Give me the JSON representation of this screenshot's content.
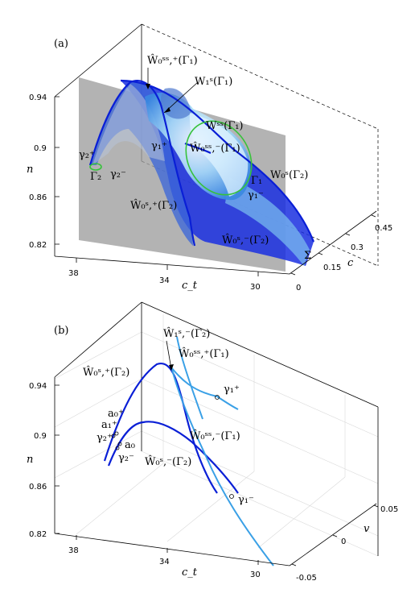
{
  "panel_a": {
    "label": "(a)",
    "y_axis_label": "n",
    "x_axis_label": "c_t",
    "z_axis_label": "c",
    "y_ticks": [
      "0.94",
      "0.9",
      "0.86",
      "0.82"
    ],
    "x_ticks": [
      "38",
      "34",
      "30"
    ],
    "z_ticks": [
      "0",
      "0.15",
      "0.3",
      "0.45"
    ],
    "sigma_label": "Σ",
    "labels": {
      "w0ss_plus_g1": "Ŵ₀ˢˢ,⁺(Γ₁)",
      "w1s_g1": "W₁ˢ(Γ₁)",
      "wss_g1": "Wˢˢ(Γ₁)",
      "w0ss_minus_g1": "Ŵ₀ˢˢ,⁻(Γ₁)",
      "gamma1_plus": "γ₁⁺",
      "gamma1_minus": "γ₁⁻",
      "Gamma1": "Γ₁",
      "w0s_g2": "W₀ˢ(Γ₂)",
      "gamma2_plus": "γ₂⁺",
      "gamma2_minus": "γ₂⁻",
      "Gamma2": "Γ₂",
      "w0s_plus_g2": "Ŵ₀ˢ,⁺(Γ₂)",
      "w0s_minus_g2": "Ŵ₀ˢ,⁻(Γ₂)"
    },
    "colors": {
      "plane": "#9a9a9a",
      "surface_dark": "#1a2fe0",
      "surface_light": "#63b3ec",
      "orbit": "#36c23a"
    }
  },
  "panel_b": {
    "label": "(b)",
    "y_axis_label": "n",
    "x_axis_label": "c_t",
    "z_axis_label": "v",
    "y_ticks": [
      "0.94",
      "0.9",
      "0.86",
      "0.82"
    ],
    "x_ticks": [
      "38",
      "34",
      "30"
    ],
    "z_ticks": [
      "0.05",
      "0",
      "-0.05"
    ],
    "labels": {
      "w1s_minus_g2": "Ŵ₁ˢ,⁻(Γ₂)",
      "w0ss_plus_g1": "Ŵ₀ˢˢ,⁺(Γ₁)",
      "w0s_plus_g2": "Ŵ₀ˢ,⁺(Γ₂)",
      "gamma1_plus": "γ₁⁺",
      "a0_plus": "a₀⁺",
      "a1_plus": "a₁⁺",
      "gamma2_plus": "γ₂⁺",
      "a0": "a₀",
      "gamma2_minus": "γ₂⁻",
      "w0ss_minus_g1": "Ŵ₀ˢˢ,⁻(Γ₁)",
      "w0s_minus_g2": "Ŵ₀ˢ,⁻(Γ₂)",
      "gamma1_minus": "γ₁⁻"
    },
    "colors": {
      "dark_curve": "#0a1fd6",
      "light_curve": "#3aa0e6"
    }
  }
}
